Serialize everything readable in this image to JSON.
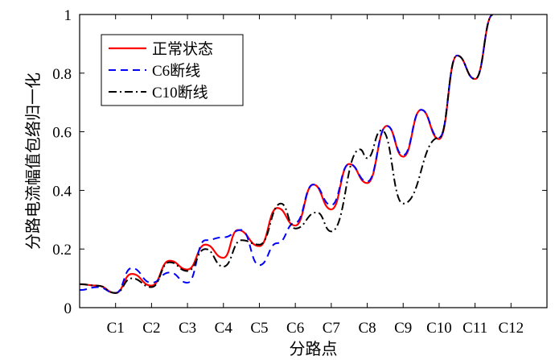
{
  "chart_data": {
    "type": "line",
    "xlabel": "分路点",
    "ylabel": "分路电流幅值包络归一化",
    "categories": [
      "C1",
      "C2",
      "C3",
      "C4",
      "C5",
      "C6",
      "C7",
      "C8",
      "C9",
      "C10",
      "C11",
      "C12"
    ],
    "xlim": [
      0,
      13
    ],
    "ylim": [
      0,
      1
    ],
    "yticks": [
      "0",
      "0.2",
      "0.4",
      "0.6",
      "0.8",
      "1"
    ],
    "legend_position": "top-left",
    "series": [
      {
        "name": "正常状态",
        "color": "#ff0000",
        "style": "solid",
        "x": [
          0,
          0.5,
          1.0,
          1.45,
          2.0,
          2.5,
          3.0,
          3.5,
          4.0,
          4.4,
          5.0,
          5.5,
          6.0,
          6.5,
          7.0,
          7.5,
          8.0,
          8.55,
          9.0,
          9.5,
          10.0,
          10.5,
          11.0,
          11.5
        ],
        "y": [
          0.08,
          0.075,
          0.05,
          0.115,
          0.075,
          0.16,
          0.13,
          0.215,
          0.17,
          0.265,
          0.21,
          0.34,
          0.28,
          0.42,
          0.335,
          0.49,
          0.425,
          0.62,
          0.515,
          0.675,
          0.575,
          0.86,
          0.78,
          1.0
        ]
      },
      {
        "name": "C6断线",
        "color": "#0000ff",
        "style": "dashed",
        "x": [
          0,
          0.5,
          1.0,
          1.45,
          2.0,
          2.5,
          3.0,
          3.5,
          4.0,
          4.5,
          5.0,
          5.5,
          6.0,
          6.5,
          7.0,
          7.5,
          8.0,
          8.55,
          9.0,
          9.5,
          10.0,
          10.5,
          11.0,
          11.5
        ],
        "y": [
          0.06,
          0.07,
          0.05,
          0.135,
          0.085,
          0.12,
          0.085,
          0.23,
          0.24,
          0.265,
          0.145,
          0.22,
          0.29,
          0.42,
          0.35,
          0.49,
          0.43,
          0.62,
          0.52,
          0.675,
          0.58,
          0.86,
          0.78,
          1.0
        ]
      },
      {
        "name": "C10断线",
        "color": "#000000",
        "style": "dashdot",
        "x": [
          0,
          0.5,
          1.0,
          1.45,
          2.0,
          2.5,
          3.0,
          3.5,
          4.0,
          4.5,
          5.0,
          5.6,
          6.0,
          6.6,
          7.0,
          7.8,
          8.0,
          8.4,
          9.0,
          10.0,
          10.5,
          11.0,
          11.5
        ],
        "y": [
          0.08,
          0.075,
          0.05,
          0.1,
          0.07,
          0.155,
          0.125,
          0.2,
          0.14,
          0.23,
          0.215,
          0.355,
          0.27,
          0.325,
          0.26,
          0.54,
          0.51,
          0.605,
          0.355,
          0.58,
          0.86,
          0.78,
          1.0
        ]
      }
    ]
  }
}
